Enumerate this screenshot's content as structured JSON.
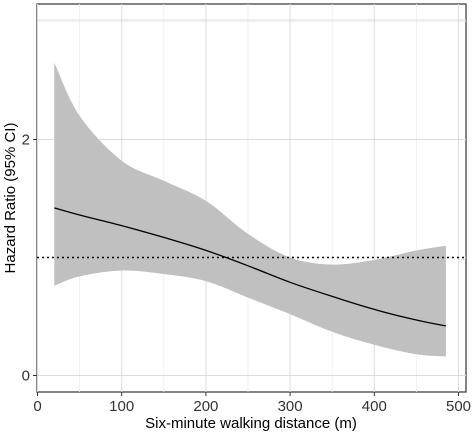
{
  "chart_data": {
    "type": "line",
    "title": "",
    "xlabel": "Six-minute walking distance (m)",
    "ylabel": "Hazard Ratio (95% CI)",
    "xlim": [
      0,
      500
    ],
    "ylim": [
      0,
      3.0
    ],
    "x_ticks": [
      0,
      100,
      200,
      300,
      400,
      500
    ],
    "x_tick_labels": [
      "0",
      "100",
      "200",
      "300",
      "400",
      "500"
    ],
    "y_ticks": [
      0,
      2
    ],
    "y_tick_labels": [
      "0",
      "2"
    ],
    "grid": true,
    "reference_line": {
      "y": 1,
      "style": "dotted"
    },
    "series": [
      {
        "type": "line",
        "color": "#000000",
        "x": [
          20,
          50,
          100,
          150,
          200,
          250,
          300,
          350,
          400,
          450,
          485
        ],
        "y": [
          1.42,
          1.36,
          1.27,
          1.17,
          1.06,
          0.93,
          0.79,
          0.67,
          0.56,
          0.47,
          0.42
        ]
      },
      {
        "type": "band",
        "color": "#c0c0c0",
        "x": [
          20,
          50,
          100,
          150,
          200,
          250,
          300,
          350,
          400,
          450,
          485
        ],
        "upper": [
          2.65,
          2.2,
          1.82,
          1.65,
          1.48,
          1.2,
          1.0,
          0.94,
          0.98,
          1.06,
          1.1
        ],
        "lower": [
          0.76,
          0.84,
          0.89,
          0.86,
          0.8,
          0.66,
          0.52,
          0.37,
          0.26,
          0.18,
          0.16
        ]
      }
    ]
  }
}
